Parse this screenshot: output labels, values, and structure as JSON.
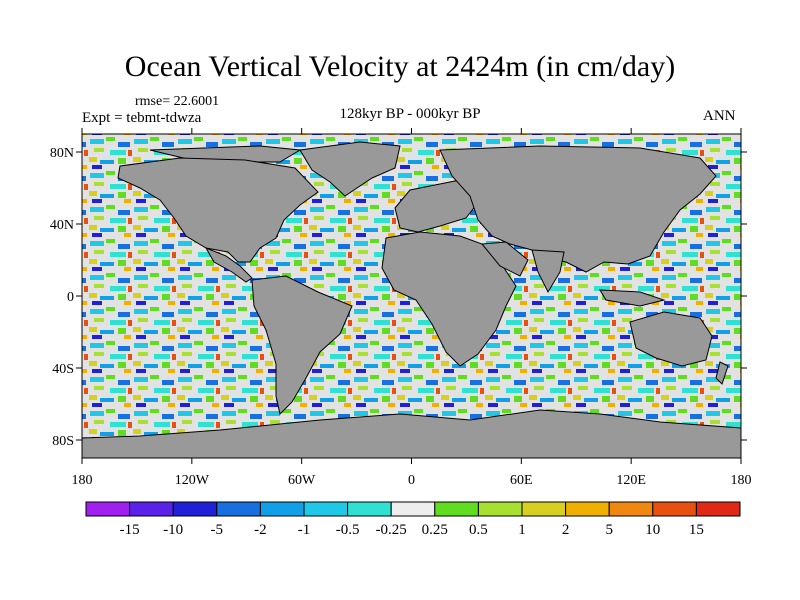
{
  "header": {
    "title": "Ocean Vertical Velocity at 2424m (in cm/day)",
    "rmse": "rmse= 22.6001",
    "expt": "Expt = tebmt-tdwza",
    "period": "128kyr BP - 000kyr BP",
    "season": "ANN"
  },
  "map": {
    "lat_labels": [
      "80N",
      "40N",
      "0",
      "40S",
      "80S"
    ],
    "lat_values": [
      80,
      40,
      0,
      -40,
      -80
    ],
    "lon_labels": [
      "180",
      "120W",
      "60W",
      "0",
      "60E",
      "120E",
      "180"
    ],
    "lon_values": [
      -180,
      -120,
      -60,
      0,
      60,
      120,
      180
    ],
    "land_color": "#999999",
    "lat_range": [
      -90,
      90
    ],
    "lon_range": [
      -180,
      180
    ]
  },
  "colorbar": {
    "labels": [
      "-15",
      "-10",
      "-5",
      "-2",
      "-1",
      "-0.5",
      "-0.25",
      "0.25",
      "0.5",
      "1",
      "2",
      "5",
      "10",
      "15"
    ],
    "colors": [
      "#a020f0",
      "#5a22e8",
      "#2020d8",
      "#1870e0",
      "#10a0e8",
      "#20c8e8",
      "#30e0d0",
      "#eeeeee",
      "#60dd20",
      "#a8e030",
      "#d8d020",
      "#f0b000",
      "#f08810",
      "#e85010",
      "#e02818"
    ]
  }
}
